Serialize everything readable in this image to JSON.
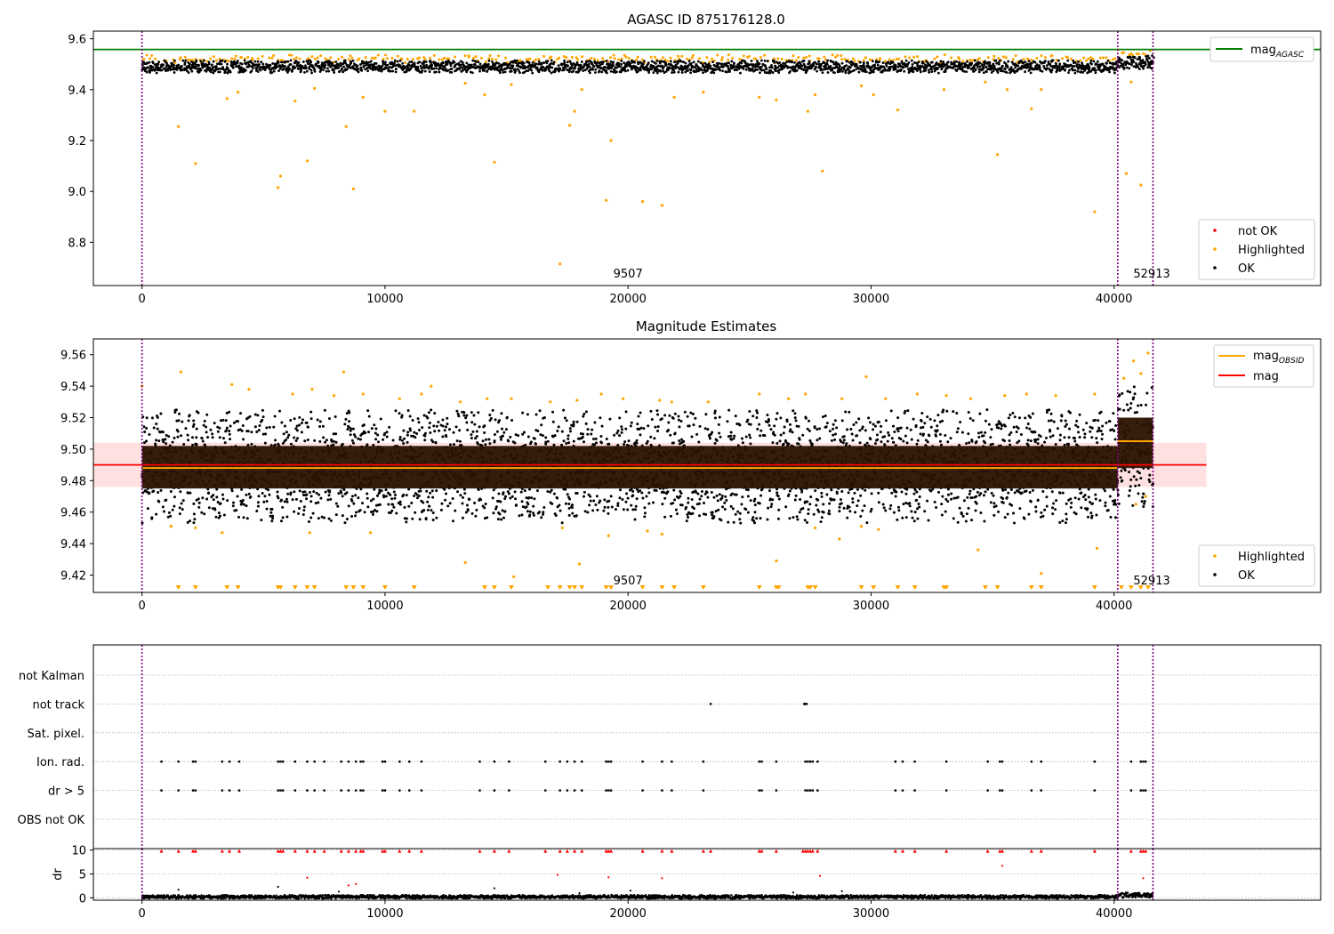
{
  "figure": {
    "background": "#ffffff",
    "colors": {
      "ok": "#000000",
      "highlighted": "#ffa500",
      "not_ok": "#ff0000",
      "agasc_line": "#008000",
      "obsid_line": "#ffa500",
      "mag_line": "#ff0000",
      "mag_band": "#ffcccc",
      "obs_boundary": "#800080",
      "grid": "#b0b0b0",
      "obsid_block": "#2a1200"
    }
  },
  "chart_data": [
    {
      "id": "agasc",
      "type": "scatter",
      "title": "AGASC ID 875176128.0",
      "xlabel": "",
      "ylabel": "",
      "xlim": [
        -2000,
        48500
      ],
      "ylim": [
        8.63,
        9.63
      ],
      "xticks": [
        0,
        10000,
        20000,
        30000,
        40000
      ],
      "xtick_labels": [
        "0",
        "10000",
        "20000",
        "30000",
        "40000"
      ],
      "yticks": [
        8.8,
        9.0,
        9.2,
        9.4,
        9.6
      ],
      "ytick_labels": [
        "8.8",
        "9.0",
        "9.2",
        "9.4",
        "9.6"
      ],
      "reference_lines": [
        {
          "y": 9.558,
          "color": "#008000",
          "label_main": "mag",
          "label_sub": "AGASC"
        }
      ],
      "obs_boundaries": [
        0,
        40150,
        41600
      ],
      "obs_labels": [
        {
          "x": 20000,
          "text": "9507"
        },
        {
          "x": 41550,
          "text": "52913"
        }
      ],
      "ok_band": [
        {
          "x0": 0,
          "x1": 40150,
          "low": 9.465,
          "high": 9.515
        },
        {
          "x0": 40150,
          "x1": 41600,
          "low": 9.478,
          "high": 9.535
        }
      ],
      "highlighted_points": {
        "x": [
          1500,
          2200,
          3500,
          3950,
          5600,
          5700,
          6300,
          6800,
          7100,
          8400,
          8700,
          9100,
          10000,
          11200,
          13300,
          14100,
          14500,
          15200,
          17200,
          17600,
          17800,
          18100,
          19100,
          19300,
          20600,
          21400,
          21900,
          23100,
          25400,
          26100,
          27400,
          27700,
          28000,
          29600,
          30100,
          31100,
          33000,
          34700,
          35200,
          35600,
          36600,
          37000,
          39200,
          40500,
          40700,
          41100
        ],
        "y": [
          9.255,
          9.11,
          9.365,
          9.39,
          9.015,
          9.06,
          9.355,
          9.12,
          9.405,
          9.255,
          9.01,
          9.37,
          9.315,
          9.315,
          9.425,
          9.38,
          9.115,
          9.42,
          8.715,
          9.26,
          9.315,
          9.4,
          8.965,
          9.2,
          8.96,
          8.945,
          9.37,
          9.39,
          9.37,
          9.36,
          9.315,
          9.38,
          9.08,
          9.415,
          9.38,
          9.32,
          9.4,
          9.43,
          9.145,
          9.4,
          9.325,
          9.4,
          8.92,
          9.07,
          9.43,
          9.025
        ]
      },
      "legends": [
        {
          "position": "upper right",
          "entries": [
            {
              "label": "mag",
              "sub": "AGASC",
              "kind": "line",
              "color": "#008000"
            }
          ]
        },
        {
          "position": "lower right",
          "entries": [
            {
              "label": "not OK",
              "kind": "point",
              "color": "#ff0000"
            },
            {
              "label": "Highlighted",
              "kind": "point",
              "color": "#ffa500"
            },
            {
              "label": "OK",
              "kind": "point",
              "color": "#000000"
            }
          ]
        }
      ]
    },
    {
      "id": "estimates",
      "type": "scatter",
      "title": "Magnitude Estimates",
      "xlabel": "",
      "ylabel": "",
      "xlim": [
        -2000,
        48500
      ],
      "ylim": [
        9.409,
        9.57
      ],
      "xticks": [
        0,
        10000,
        20000,
        30000,
        40000
      ],
      "xtick_labels": [
        "0",
        "10000",
        "20000",
        "30000",
        "40000"
      ],
      "yticks": [
        9.42,
        9.44,
        9.46,
        9.48,
        9.5,
        9.52,
        9.54,
        9.56
      ],
      "ytick_labels": [
        "9.42",
        "9.44",
        "9.46",
        "9.48",
        "9.50",
        "9.52",
        "9.54",
        "9.56"
      ],
      "mag": 9.49,
      "mag_band": [
        9.476,
        9.504
      ],
      "mag_band_xrange": [
        -2000,
        43800
      ],
      "obsid_mags": [
        {
          "x0": 0,
          "x1": 40150,
          "mag": 9.488,
          "low": 9.475,
          "high": 9.502
        },
        {
          "x0": 40150,
          "x1": 41600,
          "mag": 9.505,
          "low": 9.488,
          "high": 9.52
        }
      ],
      "obs_boundaries": [
        0,
        40150,
        41600
      ],
      "obs_labels": [
        {
          "x": 20000,
          "text": "9507"
        },
        {
          "x": 41550,
          "text": "52913"
        }
      ],
      "ok_spread": [
        {
          "x0": 0,
          "x1": 40150,
          "low": 9.453,
          "high": 9.525
        },
        {
          "x0": 40150,
          "x1": 41600,
          "low": 9.462,
          "high": 9.54
        }
      ],
      "highlighted_points": {
        "x": [
          0,
          1600,
          3700,
          4400,
          6200,
          7000,
          7900,
          8300,
          9100,
          10600,
          11500,
          11900,
          13100,
          14200,
          15200,
          16800,
          17900,
          18900,
          19800,
          21300,
          21800,
          23300,
          25400,
          26600,
          27300,
          28800,
          29800,
          30600,
          31900,
          33100,
          34100,
          35500,
          36400,
          37600,
          39200,
          40400,
          40800,
          41100,
          41400,
          1200,
          2200,
          3300,
          6900,
          9400,
          13300,
          15300,
          17300,
          18000,
          19200,
          20800,
          21400,
          26100,
          27700,
          28700,
          29600,
          30300,
          34400,
          37000,
          39300,
          40900,
          41300
        ],
        "y": [
          9.54,
          9.549,
          9.541,
          9.538,
          9.535,
          9.538,
          9.534,
          9.549,
          9.535,
          9.532,
          9.535,
          9.54,
          9.53,
          9.532,
          9.532,
          9.53,
          9.531,
          9.535,
          9.532,
          9.531,
          9.53,
          9.53,
          9.535,
          9.532,
          9.535,
          9.532,
          9.546,
          9.532,
          9.535,
          9.534,
          9.532,
          9.534,
          9.535,
          9.534,
          9.535,
          9.545,
          9.556,
          9.548,
          9.561,
          9.451,
          9.45,
          9.447,
          9.447,
          9.447,
          9.428,
          9.419,
          9.45,
          9.427,
          9.445,
          9.448,
          9.446,
          9.429,
          9.45,
          9.443,
          9.451,
          9.449,
          9.436,
          9.421,
          9.437,
          9.465,
          9.47
        ]
      },
      "clipped_low_markers_x": [
        1500,
        2200,
        3500,
        3950,
        5600,
        5700,
        6300,
        6800,
        7100,
        8400,
        8700,
        9100,
        10000,
        11200,
        14100,
        14500,
        15200,
        16700,
        17200,
        17600,
        17800,
        18100,
        19100,
        19300,
        20600,
        21400,
        21900,
        23100,
        25400,
        26100,
        26200,
        27400,
        27500,
        27700,
        29600,
        30100,
        31100,
        31800,
        33000,
        33100,
        34700,
        35200,
        36600,
        37000,
        39200,
        40300,
        40700,
        41100,
        41400
      ],
      "legends": [
        {
          "position": "upper right",
          "entries": [
            {
              "label": "mag",
              "sub": "OBSID",
              "kind": "line",
              "color": "#ffa500"
            },
            {
              "label": "mag",
              "sub": "",
              "kind": "line",
              "color": "#ff0000"
            }
          ]
        },
        {
          "position": "lower right",
          "entries": [
            {
              "label": "Highlighted",
              "kind": "point",
              "color": "#ffa500"
            },
            {
              "label": "OK",
              "kind": "point",
              "color": "#000000"
            }
          ]
        }
      ]
    },
    {
      "id": "flags",
      "type": "scatter",
      "title": "",
      "xlim": [
        -2000,
        48500
      ],
      "obs_boundaries": [
        0,
        40150,
        41600
      ],
      "categories": [
        "not Kalman",
        "not track",
        "Sat. pixel.",
        "Ion. rad.",
        "dr > 5",
        "OBS not OK"
      ],
      "flag_points": {
        "not track": [
          23400,
          27250,
          27300,
          27350
        ],
        "Ion. rad.": [
          800,
          1500,
          2100,
          2200,
          3300,
          3600,
          4000,
          5600,
          5700,
          5800,
          6300,
          6800,
          7100,
          7500,
          8200,
          8500,
          8800,
          9000,
          9100,
          9900,
          10000,
          10600,
          11000,
          11500,
          13900,
          14500,
          15100,
          16600,
          17200,
          17500,
          17800,
          18100,
          19100,
          19200,
          19300,
          20600,
          21400,
          21800,
          23100,
          25400,
          25500,
          26100,
          27300,
          27400,
          27500,
          27600,
          27800,
          31000,
          31300,
          31800,
          33100,
          34800,
          35300,
          35400,
          36600,
          37000,
          39200,
          40700,
          41100,
          41200,
          41300
        ],
        "dr > 5": [
          800,
          1500,
          2100,
          2200,
          3300,
          3600,
          4000,
          5600,
          5700,
          5800,
          6300,
          6800,
          7100,
          7500,
          8200,
          8500,
          8800,
          9000,
          9100,
          9900,
          10000,
          10600,
          11000,
          11500,
          13900,
          14500,
          15100,
          16600,
          17200,
          17500,
          17800,
          18100,
          19100,
          19200,
          19300,
          20600,
          21400,
          21800,
          23100,
          25400,
          25500,
          26100,
          27300,
          27400,
          27500,
          27600,
          27800,
          31000,
          31300,
          31800,
          33100,
          34800,
          35300,
          35400,
          36600,
          37000,
          39200,
          40700,
          41100,
          41200,
          41300
        ]
      }
    },
    {
      "id": "dr",
      "type": "scatter",
      "title": "",
      "xlabel": "",
      "ylabel": "dr",
      "xlim": [
        -2000,
        48500
      ],
      "ylim": [
        -0.5,
        10.3
      ],
      "xticks": [
        0,
        10000,
        20000,
        30000,
        40000
      ],
      "xtick_labels": [
        "0",
        "10000",
        "20000",
        "30000",
        "40000"
      ],
      "yticks": [
        0,
        5,
        10
      ],
      "ytick_labels": [
        "0",
        "5",
        "10"
      ],
      "obs_boundaries": [
        0,
        40150,
        41600
      ],
      "outlier_points": {
        "x": [
          800,
          1500,
          2100,
          2200,
          3300,
          3600,
          4000,
          5600,
          5700,
          5800,
          6300,
          6800,
          7100,
          7500,
          8200,
          8500,
          8800,
          9000,
          9100,
          9900,
          10000,
          10600,
          11000,
          11500,
          13900,
          14500,
          15100,
          16600,
          17200,
          17500,
          17800,
          18100,
          19100,
          19200,
          19300,
          20600,
          21400,
          21800,
          23100,
          23400,
          25400,
          25500,
          26100,
          27200,
          27300,
          27400,
          27500,
          27600,
          27800,
          31000,
          31300,
          31800,
          33100,
          34800,
          35300,
          35400,
          36600,
          37000,
          39200,
          40700,
          41100,
          41200,
          41300,
          6800,
          8500,
          8800,
          17100,
          19200,
          21400,
          27900,
          35400,
          41200
        ],
        "y": [
          9.8,
          9.8,
          9.8,
          9.8,
          9.8,
          9.8,
          9.8,
          9.8,
          9.8,
          9.8,
          9.8,
          9.8,
          9.8,
          9.8,
          9.8,
          9.8,
          9.8,
          9.8,
          9.8,
          9.8,
          9.8,
          9.8,
          9.8,
          9.8,
          9.8,
          9.8,
          9.8,
          9.8,
          9.8,
          9.8,
          9.8,
          9.8,
          9.8,
          9.8,
          9.8,
          9.8,
          9.8,
          9.8,
          9.8,
          9.8,
          9.8,
          9.8,
          9.8,
          9.8,
          9.8,
          9.8,
          9.8,
          9.8,
          9.8,
          9.8,
          9.8,
          9.8,
          9.8,
          9.8,
          9.8,
          9.8,
          9.8,
          9.8,
          9.8,
          9.8,
          9.8,
          9.8,
          9.8,
          4.2,
          2.6,
          2.9,
          4.8,
          4.3,
          4.1,
          4.6,
          6.7,
          4.1
        ]
      },
      "ok_points_sample": {
        "x": [
          1500,
          5600,
          8100,
          14500,
          18000,
          20100,
          26800,
          28800
        ],
        "y": [
          1.7,
          2.3,
          1.3,
          2.0,
          1.0,
          1.5,
          1.1,
          1.4
        ]
      },
      "baseline": [
        {
          "x0": 0,
          "x1": 40150,
          "low": -0.2,
          "high": 0.6
        },
        {
          "x0": 40150,
          "x1": 41600,
          "low": 0.0,
          "high": 1.1
        }
      ]
    }
  ]
}
